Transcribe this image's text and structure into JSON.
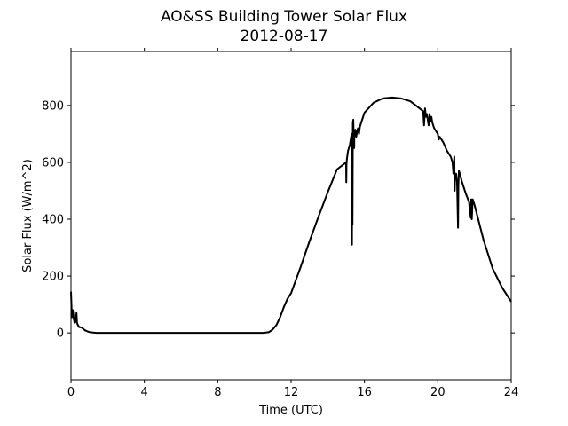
{
  "chart_data": {
    "type": "line",
    "title": "AO&SS Building Tower Solar Flux",
    "subtitle": "2012-08-17",
    "xlabel": "Time (UTC)",
    "ylabel": "Solar Flux (W/m^2)",
    "xlim": [
      0,
      24
    ],
    "ylim": [
      -165,
      990
    ],
    "xticks": [
      0,
      4,
      8,
      12,
      16,
      20,
      24
    ],
    "yticks": [
      0,
      200,
      400,
      600,
      800
    ],
    "grid": false,
    "line_color": "#000000",
    "series": [
      {
        "x": [
          0,
          0.05,
          0.1,
          0.15,
          0.2,
          0.25,
          0.3,
          0.33,
          0.36,
          0.4,
          0.45,
          0.5,
          0.6,
          0.7,
          0.8,
          0.9,
          1.0,
          1.2,
          1.4,
          1.6,
          2,
          4,
          6,
          8,
          10,
          10.5,
          10.8,
          11,
          11.2,
          11.4,
          11.6,
          11.8,
          12,
          12.5,
          13,
          13.5,
          14,
          14.5,
          15,
          15.01,
          15.02,
          15.04,
          15.1,
          15.2,
          15.3,
          15.32,
          15.33,
          15.35,
          15.37,
          15.39,
          15.4,
          15.42,
          15.44,
          15.45,
          15.5,
          15.55,
          15.6,
          15.65,
          15.7,
          15.75,
          15.8,
          16,
          16.5,
          17,
          17.5,
          18,
          18.5,
          19,
          19.2,
          19.25,
          19.3,
          19.35,
          19.4,
          19.5,
          19.55,
          19.6,
          19.65,
          19.7,
          19.8,
          20,
          20.05,
          20.1,
          20.3,
          20.5,
          20.7,
          20.8,
          20.85,
          20.9,
          20.92,
          20.94,
          21,
          21.05,
          21.1,
          21.12,
          21.15,
          21.2,
          21.3,
          21.5,
          21.7,
          21.75,
          21.8,
          21.82,
          21.85,
          21.9,
          22,
          22.5,
          23,
          23.5,
          24
        ],
        "y": [
          145,
          55,
          80,
          50,
          35,
          40,
          70,
          35,
          30,
          25,
          20,
          20,
          18,
          12,
          8,
          5,
          3,
          1,
          0,
          0,
          0,
          0,
          0,
          0,
          0,
          0,
          3,
          12,
          28,
          55,
          90,
          120,
          140,
          228,
          322,
          410,
          495,
          575,
          600,
          530,
          590,
          610,
          640,
          660,
          700,
          310,
          700,
          380,
          740,
          750,
          720,
          690,
          650,
          700,
          715,
          690,
          710,
          720,
          700,
          725,
          735,
          775,
          810,
          825,
          828,
          825,
          815,
          790,
          780,
          730,
          790,
          760,
          770,
          730,
          770,
          745,
          760,
          740,
          720,
          700,
          680,
          690,
          670,
          640,
          620,
          600,
          560,
          620,
          500,
          560,
          560,
          530,
          370,
          520,
          570,
          560,
          535,
          495,
          460,
          430,
          405,
          470,
          400,
          470,
          450,
          325,
          225,
          160,
          110
        ]
      }
    ]
  }
}
